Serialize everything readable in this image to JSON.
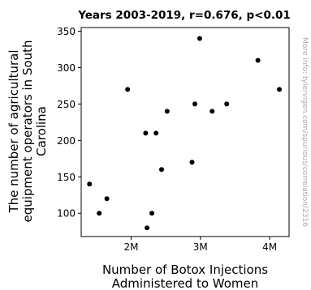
{
  "chart_data": {
    "type": "scatter",
    "title": "Years 2003-2019, r=0.676, p<0.01",
    "xlabel_lines": [
      "Number of Botox Injections",
      "Administered to Women"
    ],
    "ylabel_lines": [
      "The number of agricultural",
      "equipment operators in South",
      "Carolina"
    ],
    "xlim": [
      1280000,
      4280000
    ],
    "ylim": [
      68,
      355
    ],
    "xticks": [
      {
        "value": 2000000,
        "label": "2M"
      },
      {
        "value": 3000000,
        "label": "3M"
      },
      {
        "value": 4000000,
        "label": "4M"
      }
    ],
    "yticks": [
      100,
      150,
      200,
      250,
      300,
      350
    ],
    "points": [
      {
        "x": 1400000,
        "y": 140
      },
      {
        "x": 1540000,
        "y": 100
      },
      {
        "x": 1650000,
        "y": 120
      },
      {
        "x": 1950000,
        "y": 270
      },
      {
        "x": 2210000,
        "y": 210
      },
      {
        "x": 2230000,
        "y": 80
      },
      {
        "x": 2300000,
        "y": 100
      },
      {
        "x": 2360000,
        "y": 210
      },
      {
        "x": 2440000,
        "y": 160
      },
      {
        "x": 2520000,
        "y": 240
      },
      {
        "x": 2880000,
        "y": 170
      },
      {
        "x": 2920000,
        "y": 250
      },
      {
        "x": 2990000,
        "y": 340
      },
      {
        "x": 3170000,
        "y": 240
      },
      {
        "x": 3380000,
        "y": 250
      },
      {
        "x": 3830000,
        "y": 310
      },
      {
        "x": 4140000,
        "y": 270
      }
    ],
    "point_color": "#000000"
  },
  "watermark": "More info: tylervigen.com/spurious/correlation/2316"
}
